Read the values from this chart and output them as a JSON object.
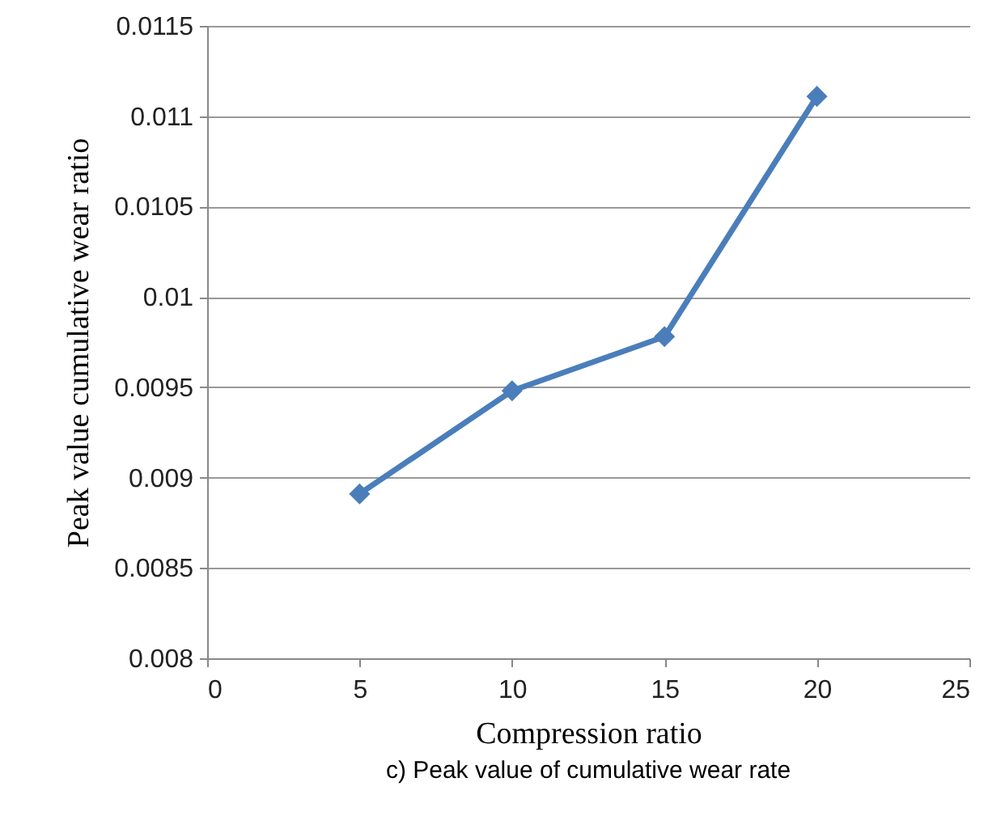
{
  "chart_data": {
    "type": "line",
    "x": [
      5,
      10,
      15,
      20
    ],
    "series": [
      {
        "color": "#4a7ebb",
        "values": [
          0.00891,
          0.00948,
          0.00978,
          0.01111
        ]
      }
    ],
    "xlabel": "Compression ratio",
    "ylabel": "Peak value cumulative wear ratio",
    "xlim": [
      0,
      25
    ],
    "xticks": [
      0,
      5,
      10,
      15,
      20,
      25
    ],
    "ylim": [
      0.008,
      0.0115
    ],
    "yticks": [
      0.008,
      0.0085,
      0.009,
      0.0095,
      0.01,
      0.0105,
      0.011,
      0.0115
    ],
    "grid": "y",
    "marker": "diamond",
    "line_style": "solid",
    "annotations": [
      "c) Peak value of cumulative wear rate"
    ]
  }
}
